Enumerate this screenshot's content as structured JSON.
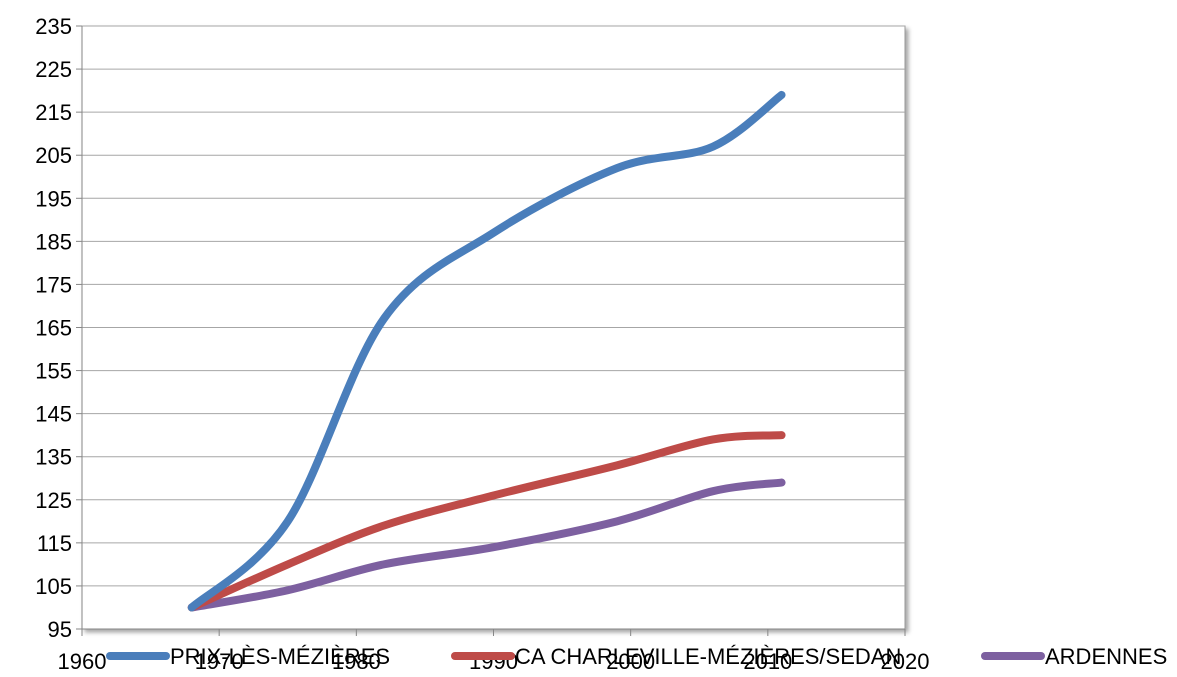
{
  "chart_data": {
    "type": "line",
    "title": "",
    "xlabel": "",
    "ylabel": "",
    "xlim": [
      1960,
      2020
    ],
    "ylim": [
      95,
      235
    ],
    "xticks": [
      "1960",
      "1970",
      "1980",
      "1990",
      "2000",
      "2010",
      "2020"
    ],
    "yticks": [
      "95",
      "105",
      "115",
      "125",
      "135",
      "145",
      "155",
      "165",
      "175",
      "185",
      "195",
      "205",
      "215",
      "225",
      "235"
    ],
    "grid": "horizontal",
    "legend": "bottom",
    "series": [
      {
        "name": "PRIX-LÈS-MÉZIÈRES",
        "color": "#4a7ebb",
        "x": [
          1968,
          1975,
          1982,
          1990,
          1999,
          2006,
          2011
        ],
        "y": [
          100,
          120,
          167,
          187,
          202,
          207,
          219
        ]
      },
      {
        "name": "CA CHARLEVILLE-MÉZIÈRES/SEDAN",
        "color": "#be4b48",
        "x": [
          1968,
          1975,
          1982,
          1990,
          1999,
          2006,
          2011
        ],
        "y": [
          100,
          110,
          119,
          126,
          133,
          139,
          140
        ]
      },
      {
        "name": "ARDENNES",
        "color": "#7d60a0",
        "x": [
          1968,
          1975,
          1982,
          1990,
          1999,
          2006,
          2011
        ],
        "y": [
          100,
          104,
          110,
          114,
          120,
          127,
          129
        ]
      }
    ]
  }
}
